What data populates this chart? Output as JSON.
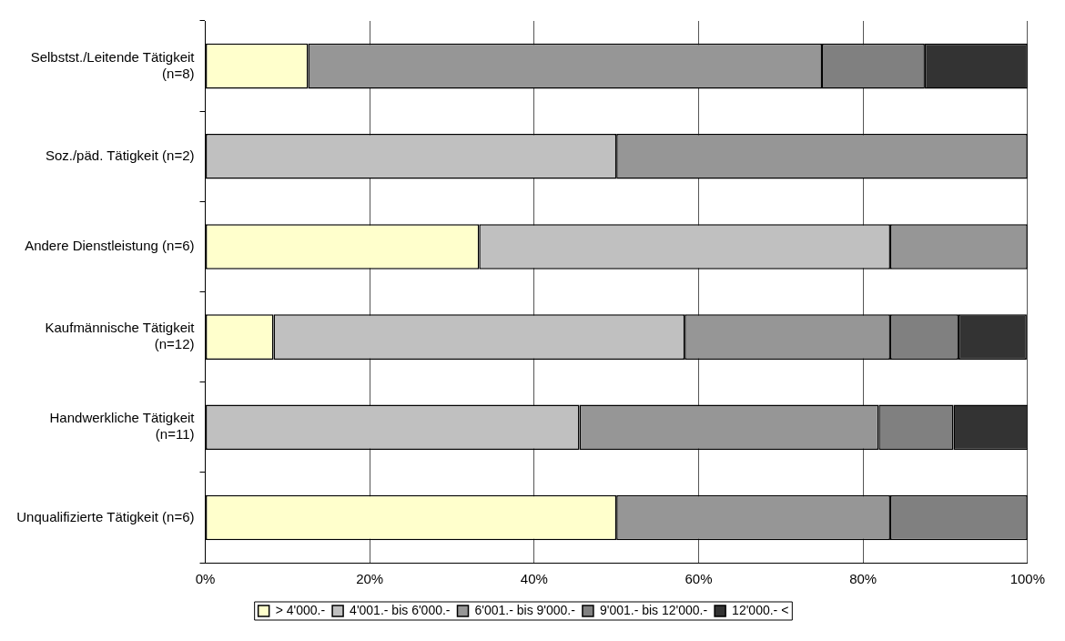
{
  "chart_data": {
    "type": "bar",
    "orientation": "horizontal",
    "stacked": true,
    "categories": [
      "Selbstst./Leitende Tätigkeit\n(n=8)",
      "Soz./päd. Tätigkeit (n=2)",
      "Andere Dienstleistung (n=6)",
      "Kaufmännische Tätigkeit\n(n=12)",
      "Handwerkliche Tätigkeit\n(n=11)",
      "Unqualifizierte Tätigkeit (n=6)"
    ],
    "series": [
      {
        "name": "> 4'000.-",
        "color": "#ffffcc",
        "values": [
          12.5,
          0,
          33.3,
          8.3,
          0,
          50
        ]
      },
      {
        "name": "4'001.- bis 6'000.-",
        "color": "#c0c0c0",
        "values": [
          0,
          50,
          50,
          50,
          45.5,
          0
        ]
      },
      {
        "name": "6'001.- bis 9'000.-",
        "color": "#969696",
        "values": [
          62.5,
          50,
          16.7,
          25,
          36.4,
          33.3
        ]
      },
      {
        "name": "9'001.- bis 12'000.-",
        "color": "#808080",
        "values": [
          12.5,
          0,
          0,
          8.3,
          9.1,
          16.7
        ]
      },
      {
        "name": "12'000.- <",
        "color": "#333333",
        "values": [
          12.5,
          0,
          0,
          8.3,
          9.1,
          0
        ]
      }
    ],
    "xlim": [
      0,
      100
    ],
    "xticks": [
      {
        "value": 0,
        "label": "0%"
      },
      {
        "value": 20,
        "label": "20%"
      },
      {
        "value": 40,
        "label": "40%"
      },
      {
        "value": 60,
        "label": "60%"
      },
      {
        "value": 80,
        "label": "80%"
      },
      {
        "value": 100,
        "label": "100%"
      }
    ],
    "grid": "x",
    "legend": "bottom"
  }
}
